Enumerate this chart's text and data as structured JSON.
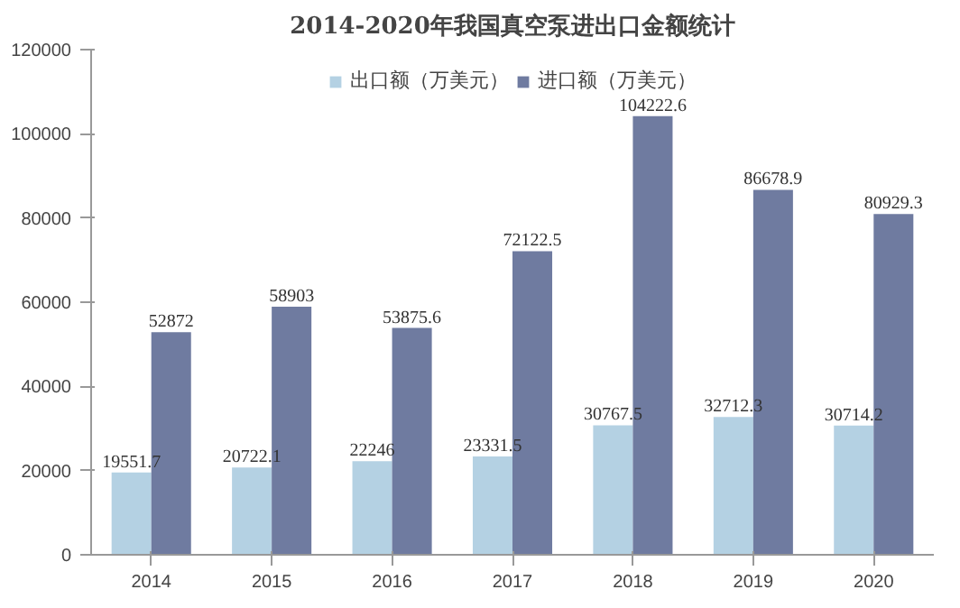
{
  "chart_data": {
    "type": "bar",
    "title": "2014-2020年我国真空泵进出口金额统计",
    "categories": [
      "2014",
      "2015",
      "2016",
      "2017",
      "2018",
      "2019",
      "2020"
    ],
    "series": [
      {
        "name": "出口额（万美元）",
        "color": "#b4d1e3",
        "values": [
          19551.7,
          20722.1,
          22246,
          23331.5,
          30767.5,
          32712.3,
          30714.2
        ]
      },
      {
        "name": "进口额（万美元）",
        "color": "#6f7ba0",
        "values": [
          52872,
          58903,
          53875.6,
          72122.5,
          104222.6,
          86678.9,
          80929.3
        ]
      }
    ],
    "ylim": [
      0,
      120000
    ],
    "yticks": [
      0,
      20000,
      40000,
      60000,
      80000,
      100000,
      120000
    ],
    "data_labels": true,
    "legend": "top",
    "grid": false
  }
}
